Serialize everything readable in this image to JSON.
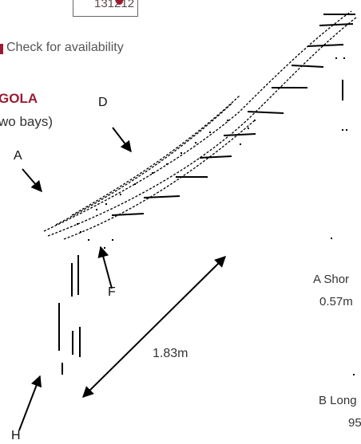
{
  "header": {
    "code": "131212",
    "availability_text": "Check for availability"
  },
  "product": {
    "name_fragment": "GOLA",
    "bays_fragment": "wo bays)"
  },
  "labels": {
    "a": "A",
    "d": "D",
    "f": "F",
    "h": "H"
  },
  "dimension": {
    "length": "1.83m"
  },
  "legend": {
    "a_label": "A Shor",
    "a_value": "0.57m",
    "b_label": "B Long",
    "b_value": "95"
  },
  "colors": {
    "accent": "#9b1b33",
    "text": "#222222"
  }
}
